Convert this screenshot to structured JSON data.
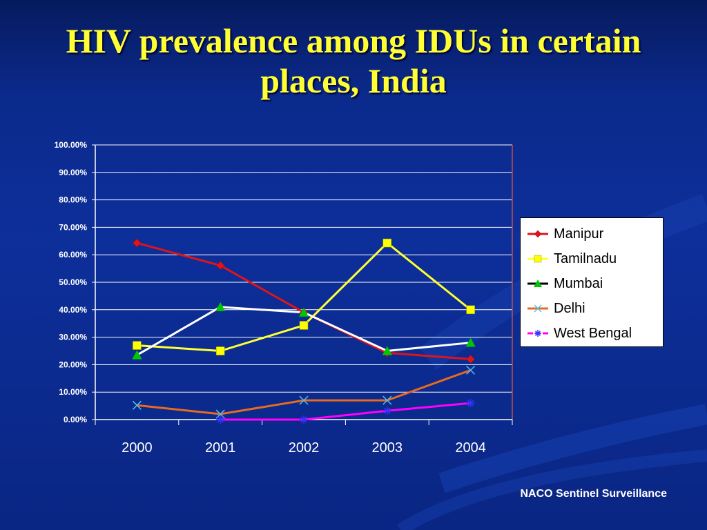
{
  "slide": {
    "title": "HIV prevalence among IDUs in certain places, India",
    "source": "NACO Sentinel Surveillance"
  },
  "colors": {
    "background": "#0b2a8c",
    "title": "#ffff33",
    "gridline": "#ffffff",
    "text": "#ffffff"
  },
  "chart_data": {
    "type": "line",
    "title": "",
    "xlabel": "",
    "ylabel": "",
    "categories": [
      "2000",
      "2001",
      "2002",
      "2003",
      "2004"
    ],
    "ylim": [
      0,
      1
    ],
    "yticks": [
      "0.00%",
      "10.00%",
      "20.00%",
      "30.00%",
      "40.00%",
      "50.00%",
      "60.00%",
      "70.00%",
      "80.00%",
      "90.00%",
      "100.00%"
    ],
    "grid": true,
    "legend_position": "right",
    "series": [
      {
        "name": "Manipur",
        "values": [
          0.643,
          0.561,
          0.39,
          0.243,
          0.22
        ],
        "color": "#e0141a",
        "marker": "diamond",
        "marker_color": "#e0141a"
      },
      {
        "name": "Tamilnadu",
        "values": [
          0.27,
          0.25,
          0.343,
          0.643,
          0.4
        ],
        "color": "#ffff33",
        "marker": "square",
        "marker_color": "#ffff00"
      },
      {
        "name": "Mumbai",
        "values": [
          0.235,
          0.41,
          0.39,
          0.25,
          0.28
        ],
        "color": "#ffffff",
        "legend_color": "#000000",
        "marker": "triangle",
        "marker_color": "#00c800"
      },
      {
        "name": "Delhi",
        "values": [
          0.052,
          0.02,
          0.07,
          0.07,
          0.18
        ],
        "color": "#e86a1e",
        "marker": "x",
        "marker_color": "#55bfe8"
      },
      {
        "name": "West Bengal",
        "values": [
          null,
          0.0,
          0.0,
          0.032,
          0.06
        ],
        "color": "#ff00ff",
        "marker": "star",
        "marker_color": "#3333ff"
      }
    ]
  }
}
